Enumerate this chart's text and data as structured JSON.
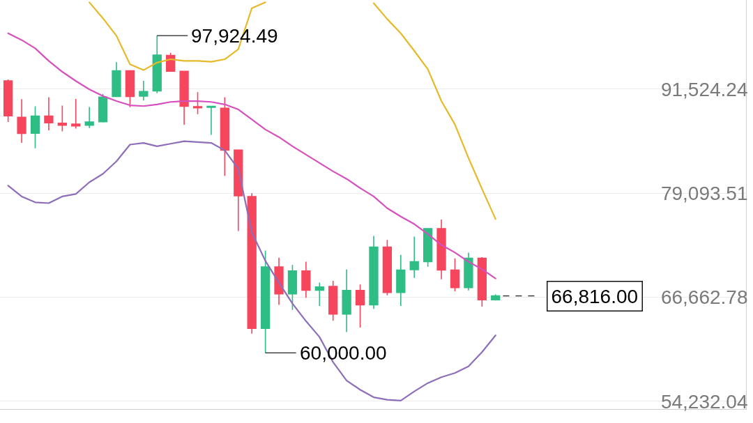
{
  "chart_data": {
    "type": "candlestick",
    "categories": [
      null,
      null,
      null,
      null,
      null,
      null,
      null,
      null,
      null,
      null,
      null,
      null,
      null,
      null,
      null,
      null,
      null,
      null,
      null,
      null,
      null,
      null,
      null,
      null,
      null,
      null,
      null,
      null,
      null,
      null,
      null,
      null,
      null,
      null,
      null,
      null,
      null
    ],
    "ohlc": [
      [
        92520,
        92680,
        87600,
        88330
      ],
      [
        88170,
        90340,
        85100,
        86230
      ],
      [
        86260,
        89480,
        84460,
        88300
      ],
      [
        88300,
        90560,
        86610,
        87500
      ],
      [
        87460,
        89560,
        86470,
        87220
      ],
      [
        87360,
        90360,
        86820,
        87140
      ],
      [
        87220,
        89400,
        86880,
        87600
      ],
      [
        87630,
        90960,
        87550,
        90580
      ],
      [
        90640,
        94750,
        90620,
        93720
      ],
      [
        93720,
        93720,
        89370,
        90640
      ],
      [
        90690,
        92520,
        90160,
        91250
      ],
      [
        91310,
        97924.49,
        91040,
        95600
      ],
      [
        95550,
        95870,
        93670,
        93670
      ],
      [
        93670,
        93670,
        87280,
        89480
      ],
      [
        89430,
        91170,
        88540,
        89290
      ],
      [
        89350,
        89480,
        86070,
        89480
      ],
      [
        89240,
        90560,
        81160,
        84240
      ],
      [
        84240,
        84240,
        74580,
        78770
      ],
      [
        78690,
        79090,
        62310,
        62930
      ],
      [
        62930,
        72240,
        60000,
        70280
      ],
      [
        70280,
        71390,
        65750,
        67060
      ],
      [
        67060,
        70500,
        65130,
        69800
      ],
      [
        69800,
        70900,
        66600,
        67490
      ],
      [
        67490,
        68410,
        65610,
        67890
      ],
      [
        67950,
        68620,
        63840,
        64650
      ],
      [
        64650,
        69960,
        62500,
        67470
      ],
      [
        67470,
        68170,
        63040,
        65750
      ],
      [
        65750,
        73990,
        65270,
        72640
      ],
      [
        72640,
        73510,
        66880,
        67220
      ],
      [
        67220,
        71710,
        65610,
        69910
      ],
      [
        69960,
        73910,
        68970,
        70900
      ],
      [
        70900,
        74850,
        70310,
        74850
      ],
      [
        74850,
        75950,
        68810,
        69910
      ],
      [
        69910,
        71310,
        67360,
        67810
      ],
      [
        67810,
        71980,
        67470,
        71310
      ],
      [
        71310,
        71440,
        65530,
        66340
      ],
      [
        66340,
        67000,
        66260,
        66816
      ]
    ],
    "colors": [
      "#f6465d",
      "#f6465d",
      "#2ebd85",
      "#f6465d",
      "#f6465d",
      "#f6465d",
      "#2ebd85",
      "#2ebd85",
      "#2ebd85",
      "#f6465d",
      "#2ebd85",
      "#2ebd85",
      "#f6465d",
      "#f6465d",
      "#f6465d",
      "#2ebd85",
      "#f6465d",
      "#f6465d",
      "#f6465d",
      "#2ebd85",
      "#f6465d",
      "#2ebd85",
      "#f6465d",
      "#2ebd85",
      "#f6465d",
      "#2ebd85",
      "#f6465d",
      "#2ebd85",
      "#f6465d",
      "#2ebd85",
      "#2ebd85",
      "#2ebd85",
      "#f6465d",
      "#f6465d",
      "#2ebd85",
      "#f6465d",
      "#2ebd85"
    ],
    "series": [
      {
        "type": "line",
        "color": "#e6b928",
        "values": [
          null,
          null,
          null,
          null,
          null,
          null,
          101900,
          100000,
          97900,
          94500,
          93800,
          94700,
          95100,
          94900,
          94900,
          94800,
          95100,
          96300,
          101200,
          101900,
          null,
          null,
          null,
          null,
          null,
          null,
          null,
          101800,
          99900,
          98200,
          96100,
          93900,
          90100,
          87300,
          83300,
          79600,
          76000
        ]
      },
      {
        "type": "line",
        "color": "#d650be",
        "values": [
          98200,
          97400,
          96400,
          94900,
          93600,
          92500,
          91500,
          90700,
          90100,
          89600,
          89500,
          89700,
          90000,
          90100,
          90100,
          90000,
          89700,
          89100,
          87900,
          86700,
          85800,
          84700,
          83700,
          82700,
          81700,
          80800,
          79700,
          78700,
          77300,
          76300,
          75400,
          74200,
          72900,
          72000,
          70900,
          70000,
          68900
        ]
      },
      {
        "type": "line",
        "color": "#8c6eb9",
        "values": [
          80000,
          78700,
          78000,
          77900,
          78700,
          79000,
          80400,
          81400,
          82900,
          84900,
          85100,
          84700,
          85000,
          85300,
          85200,
          85100,
          84200,
          82000,
          74400,
          71000,
          68400,
          65900,
          63800,
          61900,
          58900,
          56700,
          55600,
          54700,
          54400,
          54300,
          55400,
          56400,
          57100,
          57600,
          58400,
          60100,
          62100
        ]
      }
    ],
    "ylim": [
      53290,
      102180
    ],
    "yticks": [
      {
        "value": 54232.04,
        "label": "54,232.04"
      },
      {
        "value": 66662.78,
        "label": "66,662.78"
      },
      {
        "value": 79093.51,
        "label": "79,093.51"
      },
      {
        "value": 91524.24,
        "label": "91,524.24"
      }
    ],
    "grid": "y",
    "ref_lines": [
      {
        "axis": "y",
        "value": 66816.0,
        "label": "66,816.00",
        "line_style": "dashed",
        "color": "#222222"
      }
    ],
    "annotations": [
      "97,924.49",
      "60,000.00"
    ]
  }
}
